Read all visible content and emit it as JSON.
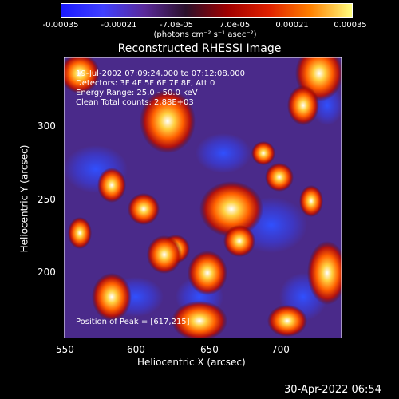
{
  "colorbar": {
    "ticks": [
      "-0.00035",
      "-0.00021",
      "-7.0e-05",
      "7.0e-05",
      "0.00021",
      "0.00035"
    ],
    "unit": "(photons cm⁻² s⁻¹ asec⁻²)",
    "colors": [
      "#1a1aff",
      "#4040ff",
      "#5a2a9a",
      "#2a102a",
      "#a00000",
      "#e02000",
      "#ff8000",
      "#ffff80"
    ]
  },
  "chart_data": {
    "type": "heatmap",
    "title": "Reconstructed RHESSI Image",
    "xlabel": "Heliocentric X (arcsec)",
    "ylabel": "Heliocentric Y (arcsec)",
    "x_ticks": [
      "550",
      "600",
      "650",
      "700"
    ],
    "y_ticks": [
      "200",
      "250",
      "300"
    ],
    "xlim": [
      549,
      737
    ],
    "ylim": [
      155,
      356
    ],
    "peak": [
      617,
      215
    ],
    "color_range": [
      -0.00035,
      0.00035
    ]
  },
  "annotations": {
    "line1": "19-Jul-2002 07:09:24.000 to 07:12:08.000",
    "line2": "Detectors: 3F 4F 5F 6F 7F 8F, Att 0",
    "line3": "Energy Range: 25.0 - 50.0 keV",
    "line4": "Clean    Total counts: 2.88E+03",
    "peak": "Position of Peak = [617,215]"
  },
  "footer": {
    "timestamp": "30-Apr-2022 06:54"
  }
}
